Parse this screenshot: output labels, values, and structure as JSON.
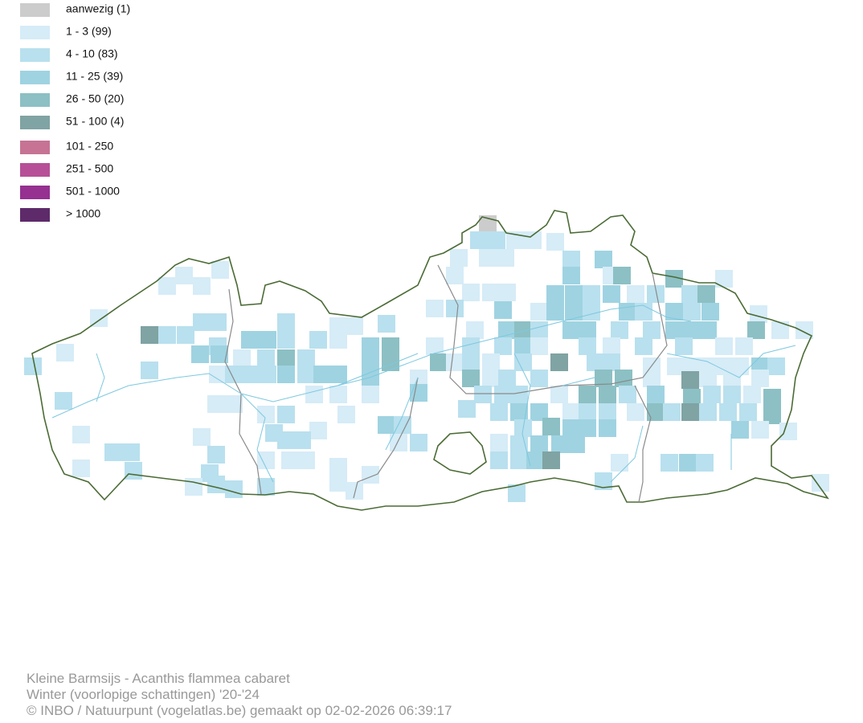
{
  "legend": {
    "items": [
      {
        "label": "aanwezig (1)",
        "color": "#cccccc"
      },
      {
        "label": "1 - 3 (99)",
        "color": "#d6ecf7"
      },
      {
        "label": "4 - 10 (83)",
        "color": "#b9e0ee"
      },
      {
        "label": "11 - 25 (39)",
        "color": "#9fd3e1"
      },
      {
        "label": "26 - 50 (20)",
        "color": "#8cc0c4"
      },
      {
        "label": "51 - 100 (4)",
        "color": "#80a3a3"
      },
      {
        "label": "101 - 250",
        "color": "#c67394"
      },
      {
        "label": "251 - 500",
        "color": "#b64f97"
      },
      {
        "label": "501 - 1000",
        "color": "#963091"
      },
      {
        "label": "> 1000",
        "color": "#5e2a6a"
      }
    ]
  },
  "footer": {
    "title": "Kleine Barmsijs - Acanthis flammea cabaret",
    "subtitle": "Winter (voorlopige schattingen) '20-'24",
    "credit": "© INBO / Natuurpunt (vogelatlas.be) gemaakt op 02-02-2026 06:39:17"
  }
}
